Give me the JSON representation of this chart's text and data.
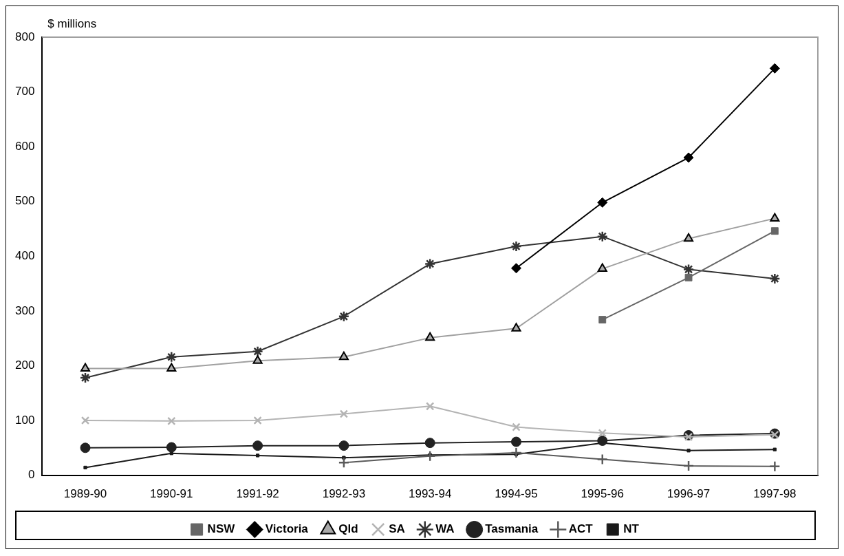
{
  "chart_data": {
    "type": "line",
    "ylabel": "$ millions",
    "categories": [
      "1989-90",
      "1990-91",
      "1991-92",
      "1992-93",
      "1993-94",
      "1994-95",
      "1995-96",
      "1996-97",
      "1997-98"
    ],
    "ylim": [
      0,
      800
    ],
    "yticks": [
      0,
      100,
      200,
      300,
      400,
      500,
      600,
      700,
      800
    ],
    "grid": false,
    "legend": "bottom",
    "line_style": "solid",
    "series": [
      {
        "name": "NSW",
        "color": "#666666",
        "marker": "square",
        "values": [
          null,
          null,
          null,
          null,
          null,
          null,
          284,
          361,
          446
        ]
      },
      {
        "name": "Victoria",
        "color": "#000000",
        "marker": "diamond",
        "values": [
          null,
          null,
          null,
          null,
          null,
          378,
          498,
          580,
          743
        ]
      },
      {
        "name": "Qld",
        "color": "#a0a0a0",
        "marker": "triangle",
        "values": [
          195,
          195,
          209,
          216,
          251,
          268,
          377,
          432,
          469
        ]
      },
      {
        "name": "SA",
        "color": "#b4b4b4",
        "marker": "cross",
        "values": [
          100,
          99,
          100,
          112,
          126,
          88,
          77,
          70,
          74
        ]
      },
      {
        "name": "WA",
        "color": "#333333",
        "marker": "cross",
        "values": [
          178,
          216,
          226,
          290,
          386,
          418,
          436,
          376,
          359
        ]
      },
      {
        "name": "Tasmania",
        "color": "#222222",
        "marker": "circle",
        "values": [
          50,
          51,
          54,
          54,
          59,
          61,
          63,
          73,
          76
        ]
      },
      {
        "name": "ACT",
        "color": "#5a5a5a",
        "marker": "cross",
        "values": [
          null,
          null,
          null,
          23,
          35,
          41,
          29,
          17,
          16
        ]
      },
      {
        "name": "NT",
        "color": "#1a1a1a",
        "marker": "square",
        "values": [
          14,
          40,
          36,
          32,
          37,
          38,
          59,
          45,
          47
        ]
      }
    ]
  }
}
